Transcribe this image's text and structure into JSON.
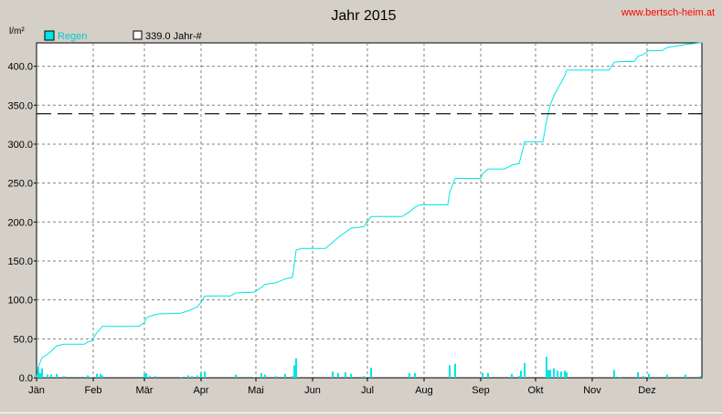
{
  "title": "Jahr 2015",
  "site": "www.bertsch-heim.at",
  "y_unit": "l/m²",
  "legend": {
    "regen_label": "Regen",
    "avg_label": "339.0 Jahr-#"
  },
  "colors": {
    "rain": "#00e5e5",
    "avg_line": "#000000",
    "grid": "#808080",
    "site": "#ff0000",
    "plot_bg": "#ffffff",
    "frame_bg": "#d4d0c8"
  },
  "chart_data": {
    "type": "line",
    "title": "Jahr 2015",
    "ylabel": "l/m²",
    "ylim": [
      0,
      430
    ],
    "yticks": [
      "0.0",
      "50.0",
      "100.0",
      "150.0",
      "200.0",
      "250.0",
      "300.0",
      "350.0",
      "400.0"
    ],
    "ytick_values": [
      0,
      50,
      100,
      150,
      200,
      250,
      300,
      350,
      400
    ],
    "months": [
      "Jän",
      "Feb",
      "Mär",
      "Apr",
      "Mai",
      "Jun",
      "Jul",
      "Aug",
      "Sep",
      "Okt",
      "Nov",
      "Dez"
    ],
    "xlim_days": [
      1,
      365
    ],
    "grid": true,
    "legend_position": "top-left",
    "reference_line": {
      "name": "339.0 Jahr-#",
      "value": 339.0,
      "style": "dashed"
    },
    "cumulative": [
      [
        1,
        0
      ],
      [
        2,
        14
      ],
      [
        4,
        26
      ],
      [
        7,
        30
      ],
      [
        9,
        34
      ],
      [
        12,
        41
      ],
      [
        16,
        43
      ],
      [
        27,
        43
      ],
      [
        29,
        46
      ],
      [
        31,
        47
      ],
      [
        34,
        58
      ],
      [
        36,
        63
      ],
      [
        37,
        66
      ],
      [
        57,
        66
      ],
      [
        60,
        71
      ],
      [
        61,
        77
      ],
      [
        63,
        79
      ],
      [
        66,
        81
      ],
      [
        68,
        82
      ],
      [
        80,
        83
      ],
      [
        84,
        86
      ],
      [
        86,
        88
      ],
      [
        89,
        91
      ],
      [
        91,
        97
      ],
      [
        93,
        105
      ],
      [
        107,
        105
      ],
      [
        110,
        109
      ],
      [
        120,
        110
      ],
      [
        124,
        116
      ],
      [
        126,
        120
      ],
      [
        132,
        122
      ],
      [
        137,
        127
      ],
      [
        141,
        129
      ],
      [
        142,
        145
      ],
      [
        143,
        164
      ],
      [
        146,
        166
      ],
      [
        159,
        166
      ],
      [
        163,
        174
      ],
      [
        166,
        180
      ],
      [
        170,
        187
      ],
      [
        173,
        192
      ],
      [
        180,
        194
      ],
      [
        184,
        207
      ],
      [
        201,
        207
      ],
      [
        205,
        213
      ],
      [
        208,
        219
      ],
      [
        211,
        222
      ],
      [
        226,
        222
      ],
      [
        227,
        238
      ],
      [
        230,
        256
      ],
      [
        244,
        256
      ],
      [
        245,
        262
      ],
      [
        248,
        268
      ],
      [
        257,
        268
      ],
      [
        261,
        273
      ],
      [
        265,
        275
      ],
      [
        266,
        284
      ],
      [
        268,
        303
      ],
      [
        278,
        303
      ],
      [
        280,
        330
      ],
      [
        281,
        340
      ],
      [
        282,
        350
      ],
      [
        284,
        362
      ],
      [
        286,
        371
      ],
      [
        288,
        379
      ],
      [
        290,
        388
      ],
      [
        291,
        395
      ],
      [
        314,
        395
      ],
      [
        317,
        405
      ],
      [
        320,
        406
      ],
      [
        328,
        406
      ],
      [
        330,
        413
      ],
      [
        333,
        415
      ],
      [
        336,
        420
      ],
      [
        343,
        420
      ],
      [
        346,
        424
      ],
      [
        356,
        428
      ],
      [
        364,
        430
      ],
      [
        365,
        430
      ]
    ],
    "daily_rain": [
      [
        2,
        14
      ],
      [
        3,
        6
      ],
      [
        4,
        12
      ],
      [
        7,
        4
      ],
      [
        9,
        4
      ],
      [
        12,
        5
      ],
      [
        16,
        2
      ],
      [
        29,
        3
      ],
      [
        31,
        1
      ],
      [
        34,
        5
      ],
      [
        36,
        5
      ],
      [
        37,
        3
      ],
      [
        60,
        5
      ],
      [
        61,
        6
      ],
      [
        63,
        2
      ],
      [
        66,
        2
      ],
      [
        80,
        1
      ],
      [
        84,
        3
      ],
      [
        86,
        2
      ],
      [
        89,
        3
      ],
      [
        91,
        6
      ],
      [
        93,
        8
      ],
      [
        110,
        4
      ],
      [
        120,
        1
      ],
      [
        124,
        6
      ],
      [
        126,
        4
      ],
      [
        132,
        2
      ],
      [
        137,
        5
      ],
      [
        141,
        2
      ],
      [
        142,
        16
      ],
      [
        143,
        25
      ],
      [
        163,
        8
      ],
      [
        166,
        6
      ],
      [
        170,
        7
      ],
      [
        173,
        5
      ],
      [
        180,
        2
      ],
      [
        184,
        13
      ],
      [
        205,
        6
      ],
      [
        208,
        6
      ],
      [
        227,
        16
      ],
      [
        230,
        18
      ],
      [
        245,
        6
      ],
      [
        248,
        6
      ],
      [
        261,
        5
      ],
      [
        265,
        2
      ],
      [
        266,
        9
      ],
      [
        268,
        19
      ],
      [
        280,
        27
      ],
      [
        281,
        10
      ],
      [
        282,
        10
      ],
      [
        284,
        12
      ],
      [
        286,
        9
      ],
      [
        288,
        8
      ],
      [
        290,
        9
      ],
      [
        291,
        7
      ],
      [
        317,
        10
      ],
      [
        320,
        1
      ],
      [
        330,
        7
      ],
      [
        333,
        2
      ],
      [
        336,
        5
      ],
      [
        346,
        4
      ],
      [
        356,
        4
      ],
      [
        364,
        2
      ]
    ]
  }
}
